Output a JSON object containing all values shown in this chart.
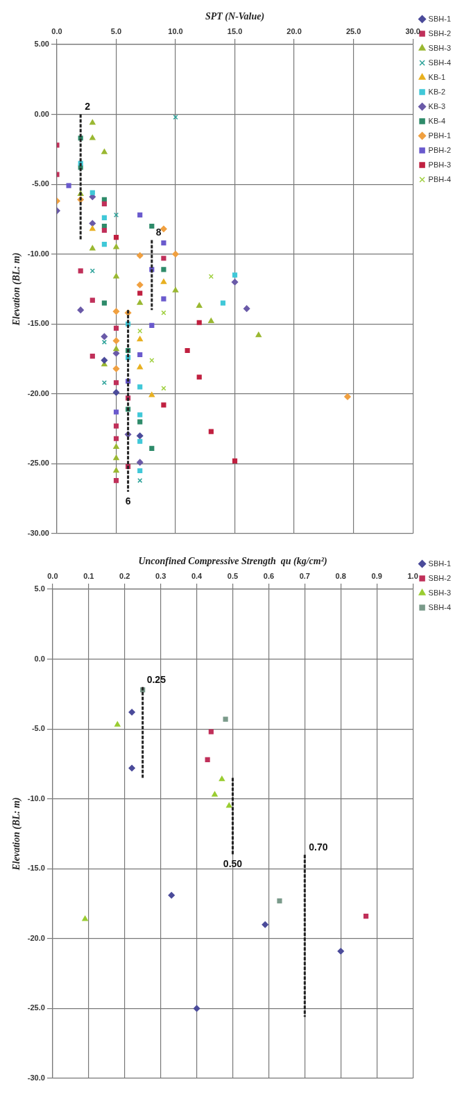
{
  "chart_data": [
    {
      "type": "scatter",
      "xlabel": "SPT (N-Value)",
      "ylabel": "Elevation (BL: m)",
      "xlim": [
        0,
        30
      ],
      "ylim": [
        -30,
        5
      ],
      "xticks": [
        {
          "value": 0,
          "label": "0.0"
        },
        {
          "value": 5,
          "label": "5.0"
        },
        {
          "value": 10,
          "label": "10.0"
        },
        {
          "value": 15,
          "label": "15.0"
        },
        {
          "value": 20,
          "label": "20.0"
        },
        {
          "value": 25,
          "label": "25.0"
        },
        {
          "value": 30,
          "label": "30.0"
        }
      ],
      "yticks": [
        {
          "value": 5,
          "label": "5.00"
        },
        {
          "value": 0,
          "label": "0.00"
        },
        {
          "value": -5,
          "label": "-5.00"
        },
        {
          "value": -10,
          "label": "-10.00"
        },
        {
          "value": -15,
          "label": "-15.00"
        },
        {
          "value": -20,
          "label": "-20.00"
        },
        {
          "value": -25,
          "label": "-25.00"
        },
        {
          "value": -30,
          "label": "-30.00"
        }
      ],
      "grid": true,
      "legend": "right",
      "series": [
        {
          "name": "SBH-1",
          "color": "#4b4b9a",
          "marker": "diamond",
          "x": [
            4,
            5,
            7
          ],
          "values": [
            -17.6,
            -19.9,
            -23.0
          ]
        },
        {
          "name": "SBH-2",
          "color": "#c0305a",
          "marker": "square",
          "x": [
            0,
            0,
            4,
            4,
            9,
            2,
            3,
            5,
            3,
            5,
            6,
            5,
            5,
            6,
            5
          ],
          "values": [
            -2.2,
            -4.3,
            -6.4,
            -8.3,
            -10.3,
            -11.2,
            -13.3,
            -15.3,
            -17.3,
            -19.2,
            -20.3,
            -22.3,
            -23.2,
            -25.2,
            -26.2
          ]
        },
        {
          "name": "SBH-3",
          "color": "#9ab832",
          "marker": "triangle",
          "x": [
            3,
            3,
            4,
            2,
            3,
            5,
            5,
            10,
            7,
            12,
            13,
            17,
            5,
            4,
            5,
            5,
            5
          ],
          "values": [
            -0.6,
            -1.7,
            -2.7,
            -5.7,
            -9.6,
            -9.5,
            -11.6,
            -12.6,
            -13.5,
            -13.7,
            -14.8,
            -15.8,
            -16.8,
            -17.9,
            -23.8,
            -24.6,
            -25.5
          ]
        },
        {
          "name": "SBH-4",
          "color": "#2aa198",
          "marker": "cross",
          "x": [
            10,
            5,
            3,
            4,
            4,
            7
          ],
          "values": [
            -0.2,
            -7.2,
            -11.2,
            -16.3,
            -19.2,
            -26.2
          ]
        },
        {
          "name": "KB-1",
          "color": "#e8b020",
          "marker": "triangle",
          "x": [
            3,
            9,
            7,
            7,
            8
          ],
          "values": [
            -8.2,
            -12.0,
            -16.1,
            -18.1,
            -20.1
          ]
        },
        {
          "name": "KB-2",
          "color": "#40c8d8",
          "marker": "square",
          "x": [
            2,
            3,
            4,
            4,
            15,
            14,
            6,
            6,
            7,
            7,
            7,
            7
          ],
          "values": [
            -3.5,
            -5.6,
            -7.4,
            -9.3,
            -11.5,
            -13.5,
            -15.0,
            -17.4,
            -19.5,
            -21.5,
            -23.4,
            -25.5
          ]
        },
        {
          "name": "KB-3",
          "color": "#6a5aa8",
          "marker": "diamond",
          "x": [
            0,
            3,
            3,
            15,
            2,
            16,
            4,
            5,
            6,
            7
          ],
          "values": [
            -6.9,
            -5.9,
            -7.8,
            -12.0,
            -14.0,
            -13.9,
            -15.9,
            -17.1,
            -22.9,
            -24.9
          ]
        },
        {
          "name": "KB-4",
          "color": "#2e8b6a",
          "marker": "square",
          "x": [
            2,
            2,
            4,
            4,
            8,
            9,
            4,
            6,
            6,
            7,
            8
          ],
          "values": [
            -1.7,
            -3.8,
            -6.1,
            -8.0,
            -8.0,
            -11.1,
            -13.5,
            -16.9,
            -21.1,
            -22.0,
            -23.9
          ]
        },
        {
          "name": "PBH-1",
          "color": "#f0a040",
          "marker": "diamond",
          "x": [
            0,
            2,
            9,
            10,
            7,
            7,
            5,
            6,
            5,
            5,
            24.5
          ],
          "values": [
            -6.2,
            -6.1,
            -8.2,
            -10.0,
            -10.1,
            -12.2,
            -14.1,
            -14.2,
            -16.2,
            -18.2,
            -20.2
          ]
        },
        {
          "name": "PBH-2",
          "color": "#6a5acd",
          "marker": "square",
          "x": [
            1,
            7,
            9,
            8,
            9,
            8,
            7,
            6,
            5
          ],
          "values": [
            -5.1,
            -7.2,
            -9.2,
            -11.1,
            -13.2,
            -15.1,
            -17.2,
            -19.1,
            -21.3
          ]
        },
        {
          "name": "PBH-3",
          "color": "#c02040",
          "marker": "square",
          "x": [
            5,
            7,
            12,
            11,
            12,
            9,
            13,
            15
          ],
          "values": [
            -8.8,
            -12.8,
            -14.9,
            -16.9,
            -18.8,
            -20.8,
            -22.7,
            -24.8
          ]
        },
        {
          "name": "PBH-4",
          "color": "#a0d040",
          "marker": "cross",
          "x": [
            13,
            9,
            7,
            8,
            9
          ],
          "values": [
            -11.6,
            -14.2,
            -15.5,
            -17.6,
            -19.6
          ]
        },
        {
          "type": "line",
          "color": "#222222",
          "line_style": "dashed",
          "marker": "none",
          "x": [
            2,
            2
          ],
          "values": [
            0,
            -9
          ]
        },
        {
          "type": "line",
          "color": "#222222",
          "line_style": "dashed",
          "marker": "none",
          "x": [
            8,
            8
          ],
          "values": [
            -9,
            -14
          ]
        },
        {
          "type": "line",
          "color": "#222222",
          "line_style": "dashed",
          "marker": "none",
          "x": [
            6,
            6
          ],
          "values": [
            -14,
            -27
          ]
        }
      ],
      "annotations": [
        {
          "text": "2",
          "x": 2,
          "y": 0
        },
        {
          "text": "8",
          "x": 8,
          "y": -9
        },
        {
          "text": "6",
          "x": 6,
          "y": -27
        }
      ]
    },
    {
      "type": "scatter",
      "xlabel": "Unconfined Compressive Strength  qu (kg/cm²)",
      "ylabel": "Elevation (BL: m)",
      "xlim": [
        0,
        1
      ],
      "ylim": [
        -30,
        5
      ],
      "xticks": [
        {
          "value": 0,
          "label": "0.0"
        },
        {
          "value": 0.1,
          "label": "0.1"
        },
        {
          "value": 0.2,
          "label": "0.2"
        },
        {
          "value": 0.3,
          "label": "0.3"
        },
        {
          "value": 0.4,
          "label": "0.4"
        },
        {
          "value": 0.5,
          "label": "0.5"
        },
        {
          "value": 0.6,
          "label": "0.6"
        },
        {
          "value": 0.7,
          "label": "0.7"
        },
        {
          "value": 0.8,
          "label": "0.8"
        },
        {
          "value": 0.9,
          "label": "0.9"
        },
        {
          "value": 1,
          "label": "1.0"
        }
      ],
      "yticks": [
        {
          "value": 5,
          "label": "5.0"
        },
        {
          "value": 0,
          "label": "0.0"
        },
        {
          "value": -5,
          "label": "-5.0"
        },
        {
          "value": -10,
          "label": "-10.0"
        },
        {
          "value": -15,
          "label": "-15.0"
        },
        {
          "value": -20,
          "label": "-20.0"
        },
        {
          "value": -25,
          "label": "-25.0"
        },
        {
          "value": -30,
          "label": "-30.0"
        }
      ],
      "grid": true,
      "legend": "right",
      "series": [
        {
          "name": "SBH-1",
          "color": "#4b4b9a",
          "marker": "diamond",
          "x": [
            0.22,
            0.22,
            0.33,
            0.59,
            0.4,
            0.8
          ],
          "values": [
            -3.8,
            -7.8,
            -16.9,
            -19.0,
            -25.0,
            -20.9
          ]
        },
        {
          "name": "SBH-2",
          "color": "#c0305a",
          "marker": "square",
          "x": [
            0.44,
            0.43,
            0.87
          ],
          "values": [
            -5.2,
            -7.2,
            -18.4
          ]
        },
        {
          "name": "SBH-3",
          "color": "#9acd32",
          "marker": "triangle",
          "x": [
            0.18,
            0.47,
            0.45,
            0.49,
            0.09
          ],
          "values": [
            -4.7,
            -8.6,
            -9.7,
            -10.5,
            -18.6
          ]
        },
        {
          "name": "SBH-4",
          "color": "#7a9a8a",
          "marker": "square",
          "x": [
            0.25,
            0.48,
            0.63
          ],
          "values": [
            -2.2,
            -4.3,
            -17.3
          ]
        },
        {
          "type": "line",
          "color": "#222222",
          "line_style": "dashed",
          "marker": "none",
          "x": [
            0.25,
            0.25
          ],
          "values": [
            -2,
            -8.5
          ]
        },
        {
          "type": "line",
          "color": "#222222",
          "line_style": "dashed",
          "marker": "none",
          "x": [
            0.5,
            0.5
          ],
          "values": [
            -8.5,
            -14
          ]
        },
        {
          "type": "line",
          "color": "#222222",
          "line_style": "dashed",
          "marker": "none",
          "x": [
            0.7,
            0.7
          ],
          "values": [
            -14,
            -25.6
          ]
        }
      ],
      "annotations": [
        {
          "text": "0.25",
          "x": 0.25,
          "y": -2
        },
        {
          "text": "0.50",
          "x": 0.5,
          "y": -14
        },
        {
          "text": "0.70",
          "x": 0.7,
          "y": -14
        }
      ]
    }
  ]
}
